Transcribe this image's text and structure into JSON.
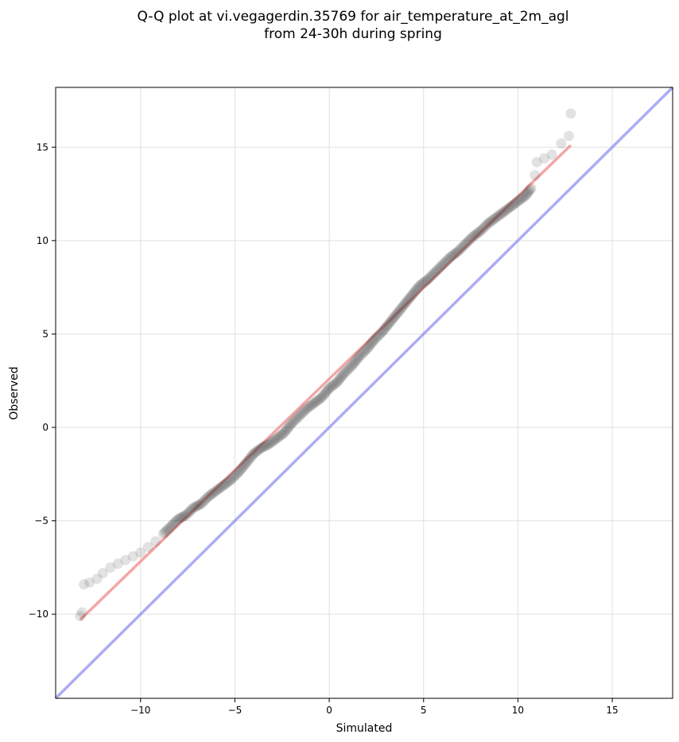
{
  "chart_data": {
    "type": "scatter",
    "title_lines": [
      "Q-Q plot at vi.vegagerdin.35769 for air_temperature_at_2m_agl",
      "from 24-30h during spring"
    ],
    "xlabel": "Simulated",
    "ylabel": "Observed",
    "xlim": [
      -14.5,
      18.2
    ],
    "ylim": [
      -14.5,
      18.2
    ],
    "x_ticks": [
      -10,
      -5,
      0,
      5,
      10,
      15
    ],
    "y_ticks": [
      -10,
      -5,
      0,
      5,
      10,
      15
    ],
    "x_tick_labels": [
      "−10",
      "−5",
      "0",
      "5",
      "10",
      "15"
    ],
    "y_tick_labels": [
      "−10",
      "−5",
      "0",
      "5",
      "10",
      "15"
    ],
    "grid": true,
    "colors": {
      "points": "#333333",
      "fit_line": "#f08080",
      "identity_line": "#7f7ff0"
    },
    "identity_line": {
      "x": [
        -14.5,
        18.2
      ],
      "y": [
        -14.5,
        18.2
      ]
    },
    "fit_line": {
      "x": [
        -13.2,
        12.8
      ],
      "y": [
        -10.3,
        15.1
      ]
    },
    "quantiles": [
      [
        -13.2,
        -10.1
      ],
      [
        -13.1,
        -9.9
      ],
      [
        -13.0,
        -8.4
      ],
      [
        -12.7,
        -8.3
      ],
      [
        -12.3,
        -8.1
      ],
      [
        -12.0,
        -7.8
      ],
      [
        -11.6,
        -7.5
      ],
      [
        -11.2,
        -7.3
      ],
      [
        -10.8,
        -7.1
      ],
      [
        -10.4,
        -6.9
      ],
      [
        -10.0,
        -6.7
      ],
      [
        -9.6,
        -6.4
      ],
      [
        -9.2,
        -6.1
      ],
      [
        -8.8,
        -5.7
      ],
      [
        -8.4,
        -5.3
      ],
      [
        -8.0,
        -4.9
      ],
      [
        -7.6,
        -4.7
      ],
      [
        -7.2,
        -4.3
      ],
      [
        -6.8,
        -4.1
      ],
      [
        -6.4,
        -3.7
      ],
      [
        -6.0,
        -3.4
      ],
      [
        -5.6,
        -3.1
      ],
      [
        -5.2,
        -2.8
      ],
      [
        -4.8,
        -2.4
      ],
      [
        -4.4,
        -1.9
      ],
      [
        -4.0,
        -1.4
      ],
      [
        -3.6,
        -1.1
      ],
      [
        -3.2,
        -0.9
      ],
      [
        -2.8,
        -0.6
      ],
      [
        -2.4,
        -0.3
      ],
      [
        -2.0,
        0.2
      ],
      [
        -1.6,
        0.6
      ],
      [
        -1.2,
        1.0
      ],
      [
        -0.8,
        1.3
      ],
      [
        -0.4,
        1.6
      ],
      [
        0.0,
        2.1
      ],
      [
        0.4,
        2.4
      ],
      [
        0.8,
        2.9
      ],
      [
        1.2,
        3.3
      ],
      [
        1.6,
        3.8
      ],
      [
        2.0,
        4.2
      ],
      [
        2.4,
        4.7
      ],
      [
        2.8,
        5.1
      ],
      [
        3.2,
        5.6
      ],
      [
        3.6,
        6.1
      ],
      [
        4.0,
        6.6
      ],
      [
        4.4,
        7.1
      ],
      [
        4.8,
        7.6
      ],
      [
        5.2,
        7.9
      ],
      [
        5.6,
        8.3
      ],
      [
        6.0,
        8.7
      ],
      [
        6.4,
        9.1
      ],
      [
        6.8,
        9.4
      ],
      [
        7.2,
        9.8
      ],
      [
        7.6,
        10.2
      ],
      [
        8.0,
        10.5
      ],
      [
        8.4,
        10.9
      ],
      [
        8.8,
        11.2
      ],
      [
        9.2,
        11.5
      ],
      [
        9.6,
        11.8
      ],
      [
        10.0,
        12.1
      ],
      [
        10.4,
        12.4
      ],
      [
        10.7,
        12.8
      ],
      [
        10.9,
        13.5
      ],
      [
        11.0,
        14.2
      ],
      [
        11.4,
        14.4
      ],
      [
        11.8,
        14.6
      ],
      [
        12.3,
        15.2
      ],
      [
        12.7,
        15.6
      ],
      [
        12.8,
        16.8
      ]
    ]
  }
}
